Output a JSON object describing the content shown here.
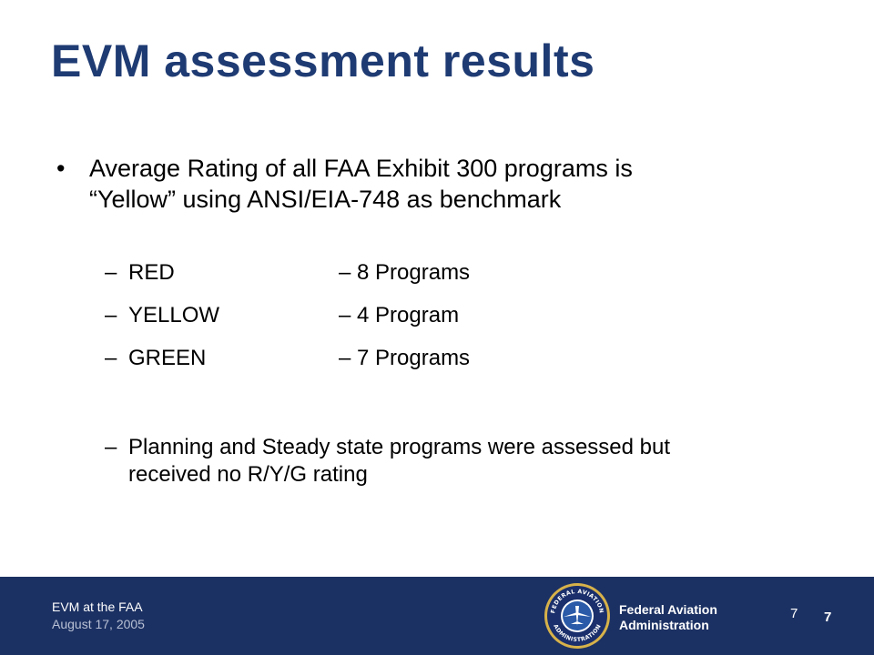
{
  "slide": {
    "title": "EVM assessment results",
    "main_bullet": {
      "marker": "•",
      "line1": "Average Rating of all FAA Exhibit 300 programs is",
      "line2": "“Yellow” using ANSI/EIA-748 as benchmark"
    },
    "ratings": [
      {
        "dash": "–",
        "name": "RED",
        "count": "– 8 Programs"
      },
      {
        "dash": "–",
        "name": "YELLOW",
        "count": "– 4 Program"
      },
      {
        "dash": "–",
        "name": "GREEN",
        "count": "– 7 Programs"
      }
    ],
    "note": {
      "dash": "–",
      "line1": "Planning and Steady state programs were assessed but",
      "line2": "received no R/Y/G rating"
    }
  },
  "footer": {
    "presentation": "EVM at the FAA",
    "date": "August 17, 2005",
    "agency_line1": "Federal Aviation",
    "agency_line2": "Administration",
    "page_number": "7",
    "page_number_bold": "7",
    "seal": {
      "icon": "faa-seal-icon",
      "top_text": "FEDERAL AVIATION",
      "bottom_text": "ADMINISTRATION"
    },
    "colors": {
      "bar": "#1c3163",
      "title": "#1f3b73",
      "seal_gold": "#d7b24a"
    }
  }
}
